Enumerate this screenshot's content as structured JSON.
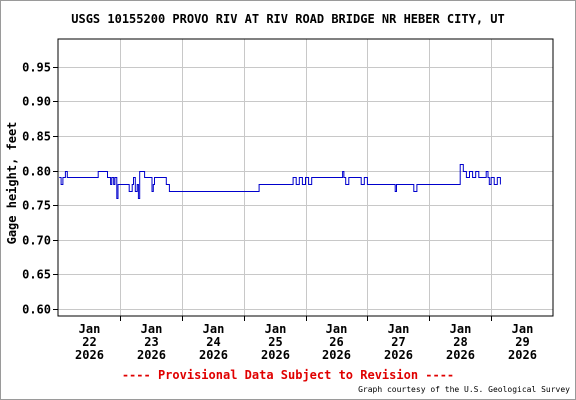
{
  "title": "USGS 10155200 PROVO RIV AT RIV ROAD BRIDGE NR HEBER CITY, UT",
  "footer": {
    "provisional": "---- Provisional Data Subject to Revision ----",
    "credit": "Graph courtesy of the U.S. Geological Survey"
  },
  "colors": {
    "series": "#0000cc",
    "grid": "#c8c8c8",
    "provisional": "#e00000"
  },
  "chart_data": {
    "type": "line",
    "title": "USGS 10155200 PROVO RIV AT RIV ROAD BRIDGE NR HEBER CITY, UT",
    "ylabel": "Gage height, feet",
    "xlabel": "",
    "ylim": [
      0.59,
      0.99
    ],
    "xlim": [
      21.5,
      29.5
    ],
    "grid": true,
    "y_ticks": [
      0.6,
      0.65,
      0.7,
      0.75,
      0.8,
      0.85,
      0.9,
      0.95
    ],
    "y_tick_labels": [
      "0.60",
      "0.65",
      "0.70",
      "0.75",
      "0.80",
      "0.85",
      "0.90",
      "0.95"
    ],
    "x_ticks": [
      {
        "x": 22,
        "label": [
          "Jan",
          "22",
          "2026"
        ]
      },
      {
        "x": 23,
        "label": [
          "Jan",
          "23",
          "2026"
        ]
      },
      {
        "x": 24,
        "label": [
          "Jan",
          "24",
          "2026"
        ]
      },
      {
        "x": 25,
        "label": [
          "Jan",
          "25",
          "2026"
        ]
      },
      {
        "x": 26,
        "label": [
          "Jan",
          "26",
          "2026"
        ]
      },
      {
        "x": 27,
        "label": [
          "Jan",
          "27",
          "2026"
        ]
      },
      {
        "x": 28,
        "label": [
          "Jan",
          "28",
          "2026"
        ]
      },
      {
        "x": 29,
        "label": [
          "Jan",
          "29",
          "2026"
        ]
      }
    ],
    "series": [
      {
        "x": [
          21.52,
          21.55,
          21.58,
          21.6,
          21.62,
          21.65,
          21.7,
          21.8,
          21.9,
          21.95,
          21.97,
          22.0,
          22.03,
          22.1,
          22.15,
          22.3,
          22.32,
          22.35,
          22.37,
          22.4,
          22.42,
          22.45,
          22.47,
          22.5,
          22.55,
          22.6,
          22.65,
          22.7,
          22.72,
          22.75,
          22.78,
          22.8,
          22.82,
          22.9,
          22.95,
          23.0,
          23.02,
          23.04,
          23.06,
          23.1,
          23.15,
          23.2,
          23.25,
          23.3,
          23.35,
          23.38,
          23.42,
          23.5,
          23.55,
          23.6,
          23.7,
          23.8,
          23.9,
          24.0,
          24.2,
          24.4,
          24.5,
          24.6,
          24.7,
          24.75,
          24.8,
          24.9,
          25.0,
          25.05,
          25.1,
          25.15,
          25.2,
          25.25,
          25.3,
          25.35,
          25.4,
          25.45,
          25.5,
          25.55,
          25.6,
          25.7,
          25.8,
          25.9,
          25.95,
          26.0,
          26.05,
          26.08,
          26.1,
          26.12,
          26.15,
          26.2,
          26.3,
          26.4,
          26.45,
          26.5,
          26.55,
          26.6,
          26.65,
          26.7,
          26.8,
          26.9,
          26.95,
          26.97,
          27.0,
          27.03,
          27.05,
          27.08,
          27.1,
          27.15,
          27.18,
          27.2,
          27.23,
          27.25,
          27.3,
          27.35,
          27.4,
          27.45,
          27.5,
          27.6,
          27.7,
          27.8,
          27.9,
          28.0,
          28.05,
          28.1,
          28.15,
          28.2,
          28.25,
          28.3,
          28.35,
          28.4,
          28.42,
          28.45,
          28.47,
          28.5,
          28.52,
          28.55,
          28.6,
          28.65
        ],
        "y": [
          0.79,
          0.78,
          0.79,
          0.79,
          0.8,
          0.79,
          0.79,
          0.79,
          0.79,
          0.79,
          0.79,
          0.79,
          0.79,
          0.79,
          0.8,
          0.79,
          0.79,
          0.78,
          0.79,
          0.78,
          0.79,
          0.76,
          0.78,
          0.78,
          0.78,
          0.78,
          0.77,
          0.78,
          0.79,
          0.77,
          0.78,
          0.76,
          0.8,
          0.79,
          0.79,
          0.79,
          0.77,
          0.78,
          0.79,
          0.79,
          0.79,
          0.79,
          0.78,
          0.77,
          0.77,
          0.77,
          0.77,
          0.77,
          0.77,
          0.77,
          0.77,
          0.77,
          0.77,
          0.77,
          0.77,
          0.77,
          0.77,
          0.77,
          0.77,
          0.78,
          0.78,
          0.78,
          0.78,
          0.78,
          0.78,
          0.78,
          0.78,
          0.78,
          0.79,
          0.78,
          0.79,
          0.78,
          0.79,
          0.78,
          0.79,
          0.79,
          0.79,
          0.79,
          0.79,
          0.79,
          0.79,
          0.79,
          0.8,
          0.79,
          0.78,
          0.79,
          0.79,
          0.78,
          0.79,
          0.78,
          0.78,
          0.78,
          0.78,
          0.78,
          0.78,
          0.78,
          0.77,
          0.78,
          0.78,
          0.78,
          0.78,
          0.78,
          0.78,
          0.78,
          0.78,
          0.78,
          0.78,
          0.77,
          0.78,
          0.78,
          0.78,
          0.78,
          0.78,
          0.78,
          0.78,
          0.78,
          0.78,
          0.81,
          0.8,
          0.79,
          0.8,
          0.79,
          0.8,
          0.79,
          0.79,
          0.79,
          0.8,
          0.79,
          0.78,
          0.79,
          0.79,
          0.78,
          0.79,
          0.78
        ],
        "color": "#0000cc"
      }
    ]
  }
}
